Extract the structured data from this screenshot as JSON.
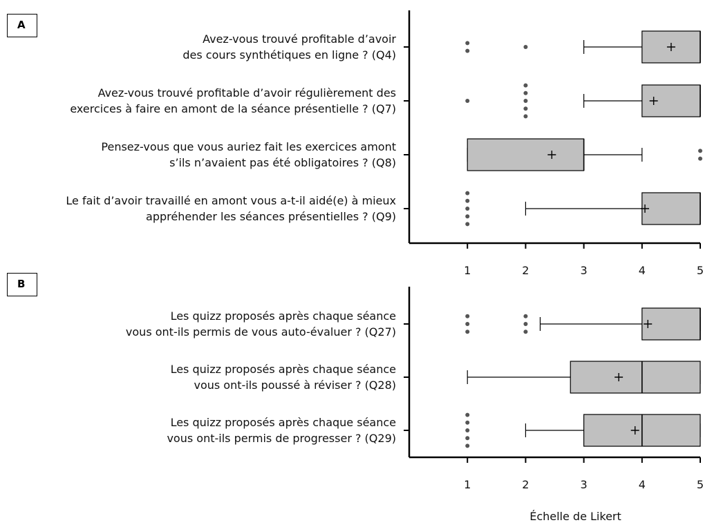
{
  "chart_data": [
    {
      "type": "box",
      "panel_label": "A",
      "color": "#c0c0c0",
      "categories": [
        "Avez-vous trouvé profitable d’avoir\ndes cours synthétiques en ligne ? (Q4)",
        "Avez-vous trouvé profitable d’avoir régulièrement des\nexercices à faire en amont de la séance présentielle ? (Q7)",
        "Pensez-vous que vous auriez fait les exercices amont\ns’ils n’avaient pas été obligatoires ? (Q8)",
        "Le fait d’avoir travaillé en amont vous a-t-il aidé(e) à mieux\nappréhender les séances présentielles ? (Q9)"
      ],
      "boxes": [
        {
          "min": 3,
          "q1": 4,
          "median": 5,
          "q3": 5,
          "max": 5,
          "mean": 4.5,
          "outliers": [
            1,
            1,
            2
          ]
        },
        {
          "min": 3,
          "q1": 4,
          "median": 5,
          "q3": 5,
          "max": 5,
          "mean": 4.2,
          "outliers": [
            1,
            2,
            2,
            2,
            2,
            2
          ]
        },
        {
          "min": 1,
          "q1": 1,
          "median": 3,
          "q3": 3,
          "max": 4,
          "mean": 2.45,
          "outliers": [
            5,
            5
          ]
        },
        {
          "min": 2,
          "q1": 4,
          "median": 5,
          "q3": 5,
          "max": 5,
          "mean": 4.05,
          "outliers": [
            1,
            1,
            1,
            1,
            1
          ]
        }
      ],
      "xlim": [
        0,
        5
      ],
      "xticks": [
        1,
        2,
        3,
        4,
        5
      ]
    },
    {
      "type": "box",
      "panel_label": "B",
      "color": "#c0c0c0",
      "categories": [
        "Les quizz proposés après chaque séance\nvous ont-ils permis de vous auto-évaluer ? (Q27)",
        "Les quizz proposés après chaque séance\nvous ont-ils poussé à réviser ? (Q28)",
        "Les quizz proposés après chaque séance\nvous ont-ils permis de progresser ? (Q29)"
      ],
      "boxes": [
        {
          "min": 2.25,
          "q1": 4,
          "median": 5,
          "q3": 5,
          "max": 5,
          "mean": 4.1,
          "outliers": [
            1,
            1,
            1,
            2,
            2,
            2
          ]
        },
        {
          "min": 1,
          "q1": 2.77,
          "median": 4,
          "q3": 5,
          "max": 5,
          "mean": 3.6,
          "outliers": []
        },
        {
          "min": 2,
          "q1": 3,
          "median": 4,
          "q3": 5,
          "max": 5,
          "mean": 3.88,
          "outliers": [
            1,
            1,
            1,
            1,
            1
          ]
        }
      ],
      "xlim": [
        0,
        5
      ],
      "xticks": [
        1,
        2,
        3,
        4,
        5
      ],
      "xlabel": "Échelle de Likert"
    }
  ]
}
